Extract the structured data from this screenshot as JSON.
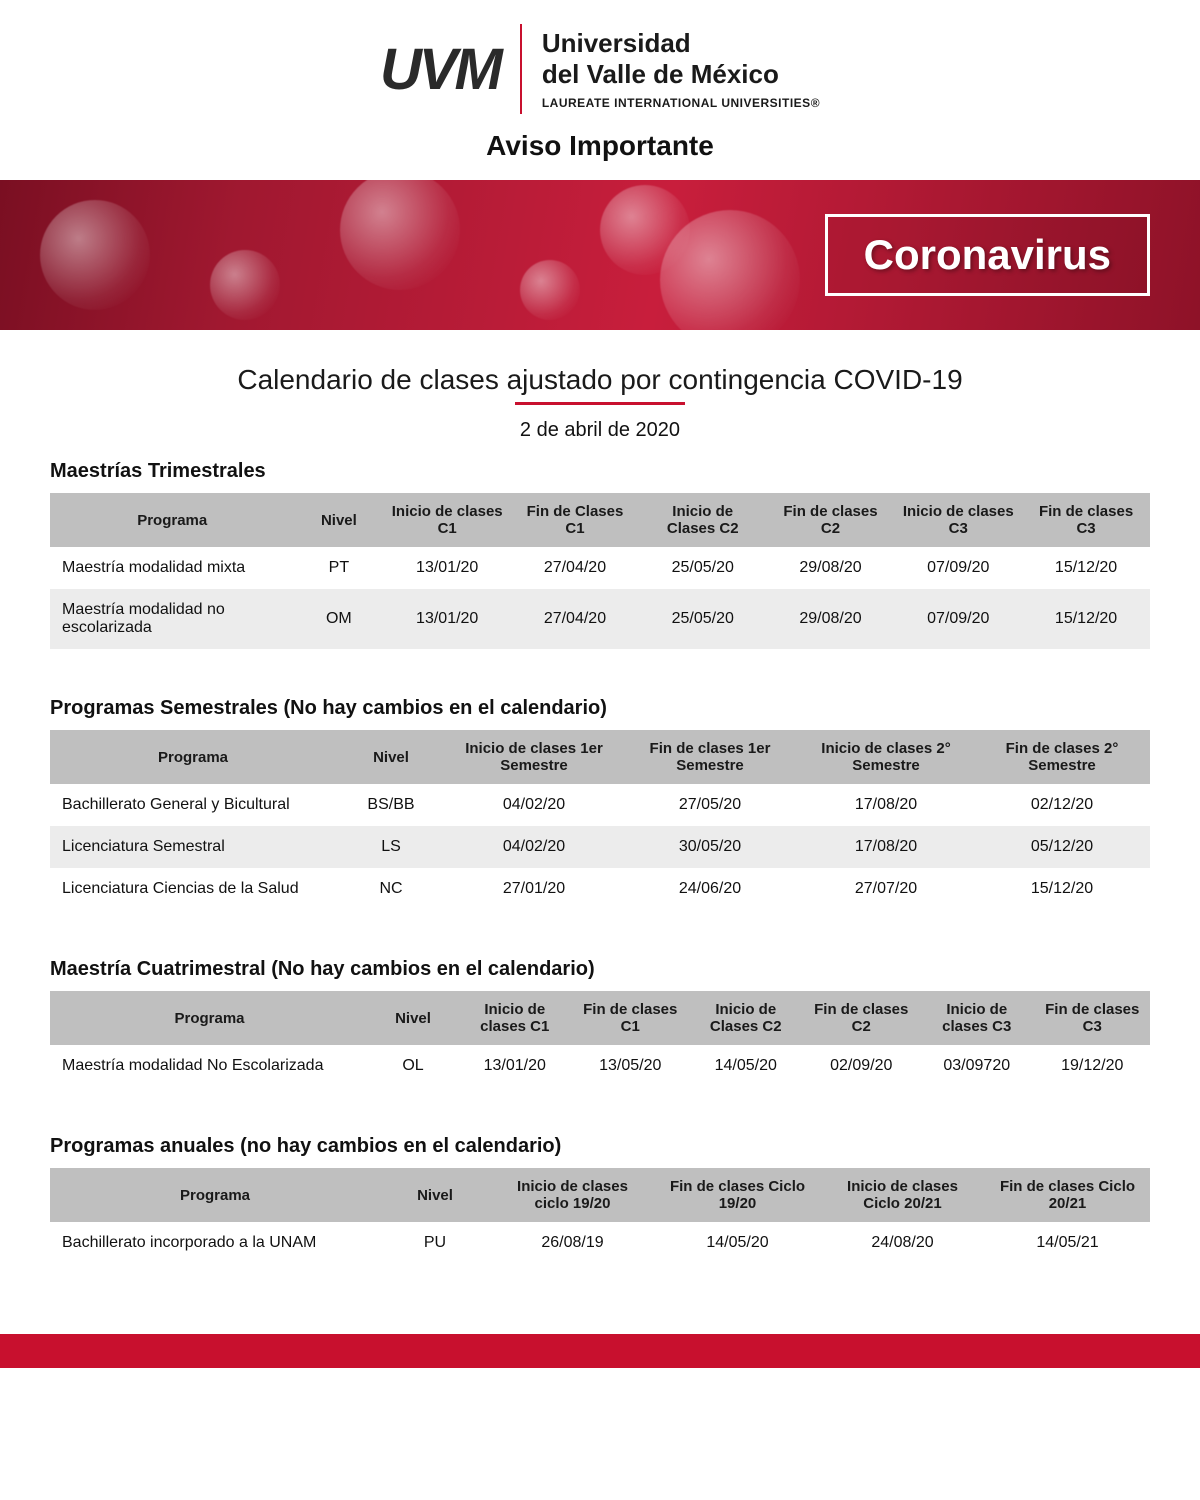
{
  "logo": {
    "left": "UVM",
    "uni_line1": "Universidad",
    "uni_line2": "del Valle de México",
    "laureate": "LAUREATE INTERNATIONAL UNIVERSITIES®"
  },
  "aviso": "Aviso Importante",
  "banner_label": "Coronavirus",
  "main_title": "Calendario de clases ajustado por contingencia COVID-19",
  "date": "2 de abril de 2020",
  "colors": {
    "accent": "#c8102e",
    "header_bg": "#bfbfbf",
    "row_alt": "#ececec",
    "text": "#1a1a1a"
  },
  "sections": [
    {
      "title": "Maestrías Trimestrales",
      "columns": [
        "Programa",
        "Nivel",
        "Inicio de clases C1",
        "Fin de Clases C1",
        "Inicio de Clases C2",
        "Fin de clases C2",
        "Inicio de clases C3",
        "Fin de clases C3"
      ],
      "col_widths": [
        "22%",
        "8%",
        "11.5%",
        "11.5%",
        "11.5%",
        "11.5%",
        "11.5%",
        "11.5%"
      ],
      "rows": [
        [
          "Maestría modalidad mixta",
          "PT",
          "13/01/20",
          "27/04/20",
          "25/05/20",
          "29/08/20",
          "07/09/20",
          "15/12/20"
        ],
        [
          "Maestría modalidad no escolarizada",
          "OM",
          "13/01/20",
          "27/04/20",
          "25/05/20",
          "29/08/20",
          "07/09/20",
          "15/12/20"
        ]
      ]
    },
    {
      "title": "Programas Semestrales (No hay cambios en el calendario)",
      "columns": [
        "Programa",
        "Nivel",
        "Inicio de clases 1er Semestre",
        "Fin de clases 1er Semestre",
        "Inicio de clases 2° Semestre",
        "Fin de clases 2° Semestre"
      ],
      "col_widths": [
        "26%",
        "10%",
        "16%",
        "16%",
        "16%",
        "16%"
      ],
      "rows": [
        [
          "Bachillerato General y Bicultural",
          "BS/BB",
          "04/02/20",
          "27/05/20",
          "17/08/20",
          "02/12/20"
        ],
        [
          "Licenciatura Semestral",
          "LS",
          "04/02/20",
          "30/05/20",
          "17/08/20",
          "05/12/20"
        ],
        [
          "Licenciatura Ciencias de la Salud",
          "NC",
          "27/01/20",
          "24/06/20",
          "27/07/20",
          "15/12/20"
        ]
      ]
    },
    {
      "title": "Maestría Cuatrimestral (No hay cambios en el calendario)",
      "columns": [
        "Programa",
        "Nivel",
        "Inicio de clases C1",
        "Fin de clases C1",
        "Inicio de Clases C2",
        "Fin de clases C2",
        "Inicio de clases C3",
        "Fin de clases C3"
      ],
      "col_widths": [
        "29%",
        "8%",
        "10.5%",
        "10.5%",
        "10.5%",
        "10.5%",
        "10.5%",
        "10.5%"
      ],
      "rows": [
        [
          "Maestría modalidad No Escolarizada",
          "OL",
          "13/01/20",
          "13/05/20",
          "14/05/20",
          "02/09/20",
          "03/09720",
          "19/12/20"
        ]
      ]
    },
    {
      "title": "Programas anuales (no hay cambios en el calendario)",
      "columns": [
        "Programa",
        "Nivel",
        "Inicio de clases ciclo 19/20",
        "Fin de clases Ciclo 19/20",
        "Inicio de clases Ciclo 20/21",
        "Fin de clases Ciclo 20/21"
      ],
      "col_widths": [
        "30%",
        "10%",
        "15%",
        "15%",
        "15%",
        "15%"
      ],
      "rows": [
        [
          "Bachillerato incorporado a la UNAM",
          "PU",
          "26/08/19",
          "14/05/20",
          "24/08/20",
          "14/05/21"
        ]
      ]
    }
  ]
}
